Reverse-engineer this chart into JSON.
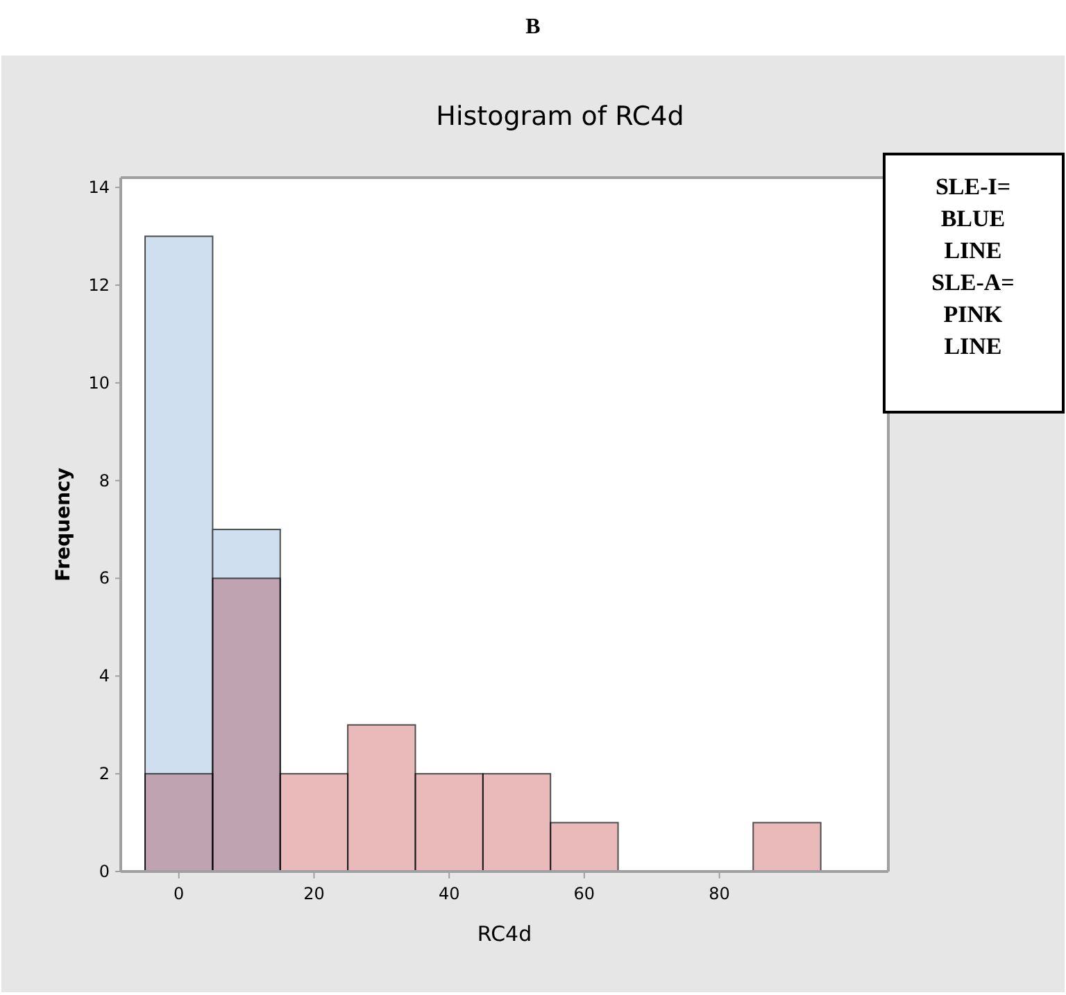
{
  "chart_data": {
    "type": "histogram",
    "title": "B",
    "subtitle": "Histogram of RC4d",
    "xlabel": "RC4d",
    "ylabel": "Frequency",
    "bins": [
      -5,
      5,
      15,
      25,
      35,
      45,
      55,
      65,
      75,
      85,
      95
    ],
    "series": [
      {
        "color": "#d0dff0",
        "values": [
          13,
          7,
          null,
          null,
          null,
          null,
          null,
          null,
          null,
          null
        ]
      },
      {
        "color": "#eababb",
        "values": [
          2,
          6,
          2,
          3,
          2,
          2,
          1,
          0,
          0,
          1
        ]
      }
    ],
    "xlim": [
      -8.6,
      105
    ],
    "xticks": [
      0,
      20,
      40,
      60,
      80
    ],
    "ylim": [
      0,
      14.2
    ],
    "yticks": [
      0,
      2,
      4,
      6,
      8,
      10,
      12,
      14
    ],
    "grid": false,
    "annotations": [
      "SLE-I= BLUE LINE SLE-A= PINK LINE"
    ]
  }
}
